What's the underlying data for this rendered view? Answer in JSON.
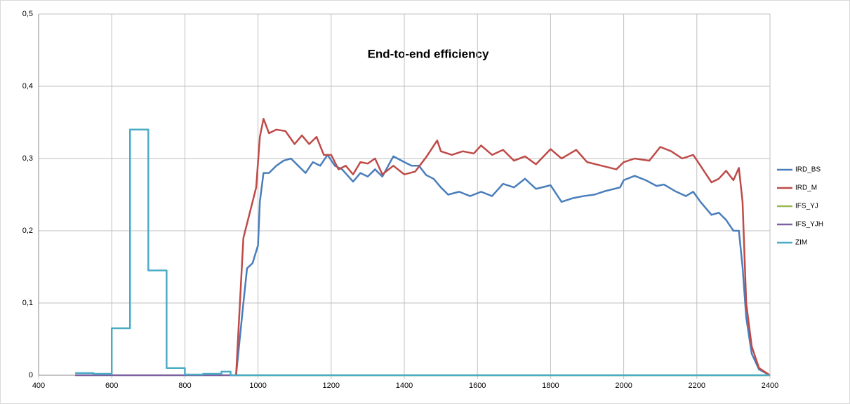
{
  "chart_data": {
    "type": "line",
    "title": "End-to-end efficiency",
    "xlim": [
      400,
      2400
    ],
    "xticks": [
      400,
      600,
      800,
      1000,
      1200,
      1400,
      1600,
      1800,
      2000,
      2200,
      2400
    ],
    "ylim": [
      0,
      0.5
    ],
    "yticks": [
      0,
      {
        "value": 0.1,
        "label": "0,1"
      },
      {
        "value": 0.2,
        "label": "0,2"
      },
      {
        "value": 0.3,
        "label": "0,3"
      },
      {
        "value": 0.4,
        "label": "0,4"
      },
      {
        "value": 0.5,
        "label": "0,5"
      }
    ],
    "grid": true,
    "legend": "right",
    "series": [
      {
        "name": "IRD_BS",
        "color": "#4a7ebb",
        "x": [
          940,
          960,
          970,
          985,
          1000,
          1005,
          1015,
          1030,
          1050,
          1070,
          1090,
          1110,
          1130,
          1150,
          1170,
          1190,
          1210,
          1230,
          1260,
          1280,
          1300,
          1320,
          1340,
          1370,
          1400,
          1420,
          1440,
          1460,
          1480,
          1500,
          1520,
          1550,
          1580,
          1610,
          1640,
          1670,
          1700,
          1730,
          1760,
          1800,
          1830,
          1860,
          1890,
          1920,
          1950,
          1990,
          2000,
          2030,
          2060,
          2090,
          2110,
          2140,
          2170,
          2190,
          2210,
          2240,
          2260,
          2280,
          2300,
          2315,
          2325,
          2335,
          2350,
          2370,
          2400
        ],
        "values": [
          0,
          0.1,
          0.148,
          0.155,
          0.18,
          0.24,
          0.28,
          0.28,
          0.29,
          0.297,
          0.3,
          0.29,
          0.28,
          0.295,
          0.29,
          0.305,
          0.29,
          0.285,
          0.268,
          0.28,
          0.275,
          0.285,
          0.275,
          0.303,
          0.295,
          0.29,
          0.29,
          0.277,
          0.272,
          0.26,
          0.25,
          0.254,
          0.248,
          0.254,
          0.248,
          0.265,
          0.26,
          0.272,
          0.258,
          0.263,
          0.24,
          0.245,
          0.248,
          0.25,
          0.255,
          0.26,
          0.27,
          0.276,
          0.27,
          0.262,
          0.264,
          0.255,
          0.248,
          0.254,
          0.24,
          0.222,
          0.225,
          0.215,
          0.2,
          0.2,
          0.15,
          0.08,
          0.03,
          0.008,
          0
        ]
      },
      {
        "name": "IRD_M",
        "color": "#be4b48",
        "x": [
          940,
          960,
          975,
          995,
          1005,
          1015,
          1030,
          1050,
          1075,
          1100,
          1120,
          1140,
          1160,
          1180,
          1200,
          1220,
          1240,
          1260,
          1280,
          1300,
          1320,
          1340,
          1370,
          1400,
          1430,
          1460,
          1490,
          1500,
          1530,
          1560,
          1590,
          1610,
          1640,
          1670,
          1700,
          1730,
          1760,
          1800,
          1830,
          1870,
          1900,
          1940,
          1980,
          2000,
          2030,
          2070,
          2100,
          2130,
          2160,
          2190,
          2210,
          2240,
          2260,
          2280,
          2300,
          2315,
          2325,
          2335,
          2350,
          2370,
          2400
        ],
        "values": [
          0,
          0.19,
          0.22,
          0.26,
          0.33,
          0.355,
          0.335,
          0.34,
          0.338,
          0.32,
          0.332,
          0.32,
          0.33,
          0.305,
          0.305,
          0.285,
          0.29,
          0.278,
          0.295,
          0.293,
          0.3,
          0.278,
          0.29,
          0.278,
          0.282,
          0.302,
          0.325,
          0.31,
          0.305,
          0.31,
          0.307,
          0.318,
          0.305,
          0.312,
          0.297,
          0.303,
          0.292,
          0.313,
          0.3,
          0.312,
          0.295,
          0.29,
          0.285,
          0.295,
          0.3,
          0.297,
          0.316,
          0.31,
          0.3,
          0.305,
          0.29,
          0.267,
          0.272,
          0.283,
          0.27,
          0.287,
          0.24,
          0.1,
          0.04,
          0.01,
          0
        ]
      },
      {
        "name": "IFS_YJ",
        "color": "#98b954",
        "x": [
          950,
          2400
        ],
        "values": [
          0,
          0
        ]
      },
      {
        "name": "IFS_YJH",
        "color": "#7d60a0",
        "x": [
          500,
          950
        ],
        "values": [
          0,
          0
        ]
      },
      {
        "name": "ZIM",
        "color": "#4bacc6",
        "x": [
          500,
          550,
          550,
          600,
          600,
          650,
          650,
          700,
          700,
          750,
          750,
          800,
          800,
          850,
          850,
          900,
          900,
          925,
          925,
          2400
        ],
        "values": [
          0.003,
          0.003,
          0.002,
          0.002,
          0.065,
          0.065,
          0.34,
          0.34,
          0.145,
          0.145,
          0.01,
          0.01,
          0.001,
          0.001,
          0.002,
          0.002,
          0.005,
          0.005,
          0,
          0
        ]
      }
    ]
  }
}
